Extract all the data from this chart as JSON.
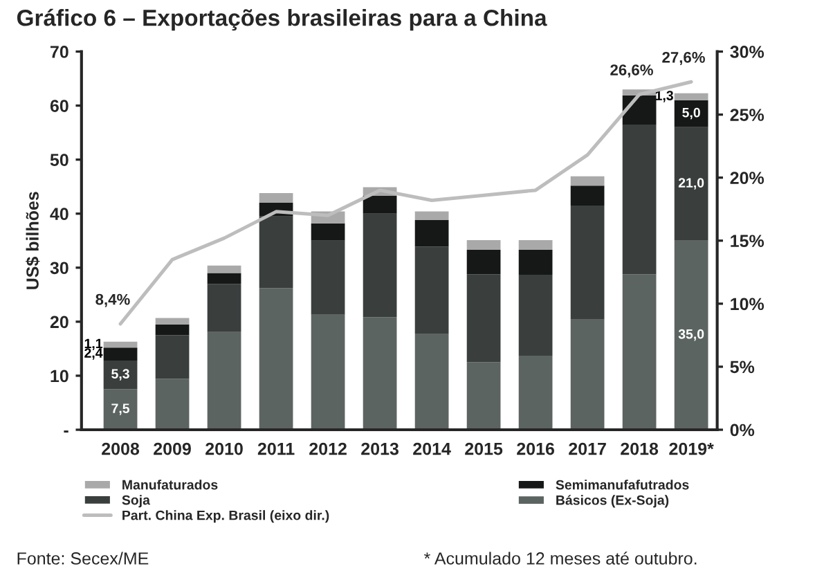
{
  "chart_data": {
    "type": "bar",
    "stacked": true,
    "title": "Gráfico 6 – Exportações brasileiras para a China",
    "ylabel": "US$ bilhões",
    "categories": [
      "2008",
      "2009",
      "2010",
      "2011",
      "2012",
      "2013",
      "2014",
      "2015",
      "2016",
      "2017",
      "2018",
      "2019*"
    ],
    "series": [
      {
        "name": "Básicos (Ex-Soja)",
        "color": "#5c6462",
        "values": [
          7.5,
          9.4,
          18.1,
          26.2,
          21.3,
          20.8,
          17.7,
          12.5,
          13.7,
          20.4,
          28.8,
          35.0
        ],
        "value_labels": [
          "7,5",
          null,
          null,
          null,
          null,
          null,
          null,
          null,
          null,
          null,
          null,
          "35,0"
        ]
      },
      {
        "name": "Soja",
        "color": "#3a3f3e",
        "values": [
          5.3,
          8.1,
          8.9,
          13.3,
          13.7,
          19.2,
          16.2,
          16.3,
          15.0,
          21.1,
          27.7,
          21.0
        ],
        "value_labels": [
          "5,3",
          null,
          null,
          null,
          null,
          null,
          null,
          null,
          null,
          null,
          null,
          "21,0"
        ]
      },
      {
        "name": "Semimanufafutrados",
        "color": "#161818",
        "values": [
          2.4,
          2.0,
          2.0,
          2.5,
          3.2,
          3.3,
          4.9,
          4.5,
          4.6,
          3.7,
          5.4,
          5.0
        ],
        "value_labels": [
          "2,4",
          null,
          null,
          null,
          null,
          null,
          null,
          null,
          null,
          null,
          null,
          "5,0"
        ]
      },
      {
        "name": "Manufaturados",
        "color": "#a9a9a9",
        "values": [
          1.1,
          1.2,
          1.4,
          1.8,
          2.2,
          1.6,
          1.6,
          1.8,
          1.8,
          1.7,
          1.1,
          1.3
        ],
        "value_labels": [
          "1,1",
          null,
          null,
          null,
          null,
          null,
          null,
          null,
          null,
          null,
          null,
          "1,3"
        ]
      },
      {
        "name": "Part. China Exp. Brasil (eixo dir.)",
        "type": "line",
        "axis": "y2",
        "color": "#bdbdbd",
        "values": [
          8.4,
          13.5,
          15.2,
          17.3,
          17.0,
          19.0,
          18.2,
          18.6,
          19.0,
          21.8,
          26.6,
          27.6
        ],
        "value_labels": [
          "8,4%",
          null,
          null,
          null,
          null,
          null,
          null,
          null,
          null,
          null,
          "26,6%",
          "27,6%"
        ]
      }
    ],
    "ylim": [
      0,
      70
    ],
    "yticks": [
      {
        "value": 0,
        "label": "-"
      },
      10,
      20,
      30,
      40,
      50,
      60,
      70
    ],
    "y2lim": [
      0,
      30
    ],
    "y2ticks": [
      {
        "value": 0,
        "label": "0%"
      },
      {
        "value": 5,
        "label": "5%"
      },
      {
        "value": 10,
        "label": "10%"
      },
      {
        "value": 15,
        "label": "15%"
      },
      {
        "value": 20,
        "label": "20%"
      },
      {
        "value": 25,
        "label": "25%"
      },
      {
        "value": 30,
        "label": "30%"
      }
    ],
    "grid": false,
    "legend": "bottom",
    "marker": "none",
    "line_style": "solid",
    "annotations": [
      "Fonte: Secex/ME",
      "* Acumulado 12 meses até outubro."
    ]
  }
}
